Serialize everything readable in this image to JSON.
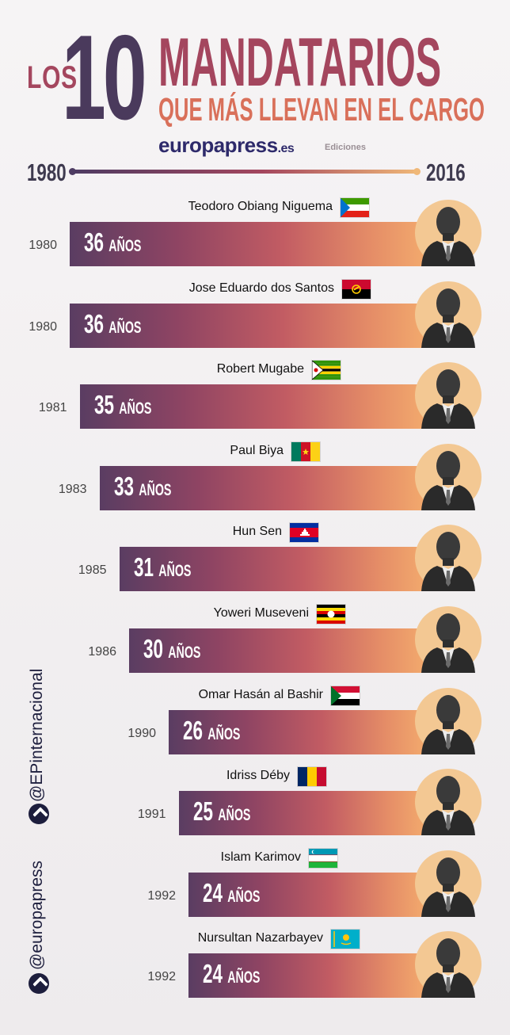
{
  "title": {
    "prefix": "LOS",
    "number": "10",
    "main": "MANDATARIOS",
    "sub": "QUE MÁS LLEVAN EN EL CARGO"
  },
  "brand": {
    "name": "europapress",
    "suffix": ".es",
    "editions": "Ediciones"
  },
  "timeline": {
    "start": "1980",
    "end": "2016"
  },
  "unit_label": "AÑOS",
  "side": {
    "handle1": "@EPinternacional",
    "handle2": "@europapress"
  },
  "colors": {
    "title_dark": "#4a3a5c",
    "title_mid": "#a4465e",
    "title_light": "#d9705a",
    "bar_start": "#5a3d62",
    "bar_end": "#f2a96d"
  },
  "chart_data": {
    "type": "bar",
    "orientation": "horizontal",
    "title": "LOS 10 MANDATARIOS QUE MÁS LLEVAN EN EL CARGO",
    "xlim": [
      1980,
      2016
    ],
    "categories": [
      "Teodoro Obiang Niguema",
      "Jose Eduardo dos Santos",
      "Robert Mugabe",
      "Paul Biya",
      "Hun Sen",
      "Yoweri Museveni",
      "Omar Hasán al Bashir",
      "Idriss Déby",
      "Islam Karimov",
      "Nursultan Nazarbayev"
    ],
    "start_years": [
      1980,
      1980,
      1981,
      1983,
      1985,
      1986,
      1990,
      1991,
      1992,
      1992
    ],
    "values": [
      36,
      36,
      35,
      33,
      31,
      30,
      26,
      25,
      24,
      24
    ],
    "flags": [
      "equatorial-guinea-flag",
      "angola-flag",
      "zimbabwe-flag",
      "cameroon-flag",
      "cambodia-flag",
      "uganda-flag",
      "sudan-flag",
      "chad-flag",
      "uzbekistan-flag",
      "kazakhstan-flag"
    ]
  }
}
